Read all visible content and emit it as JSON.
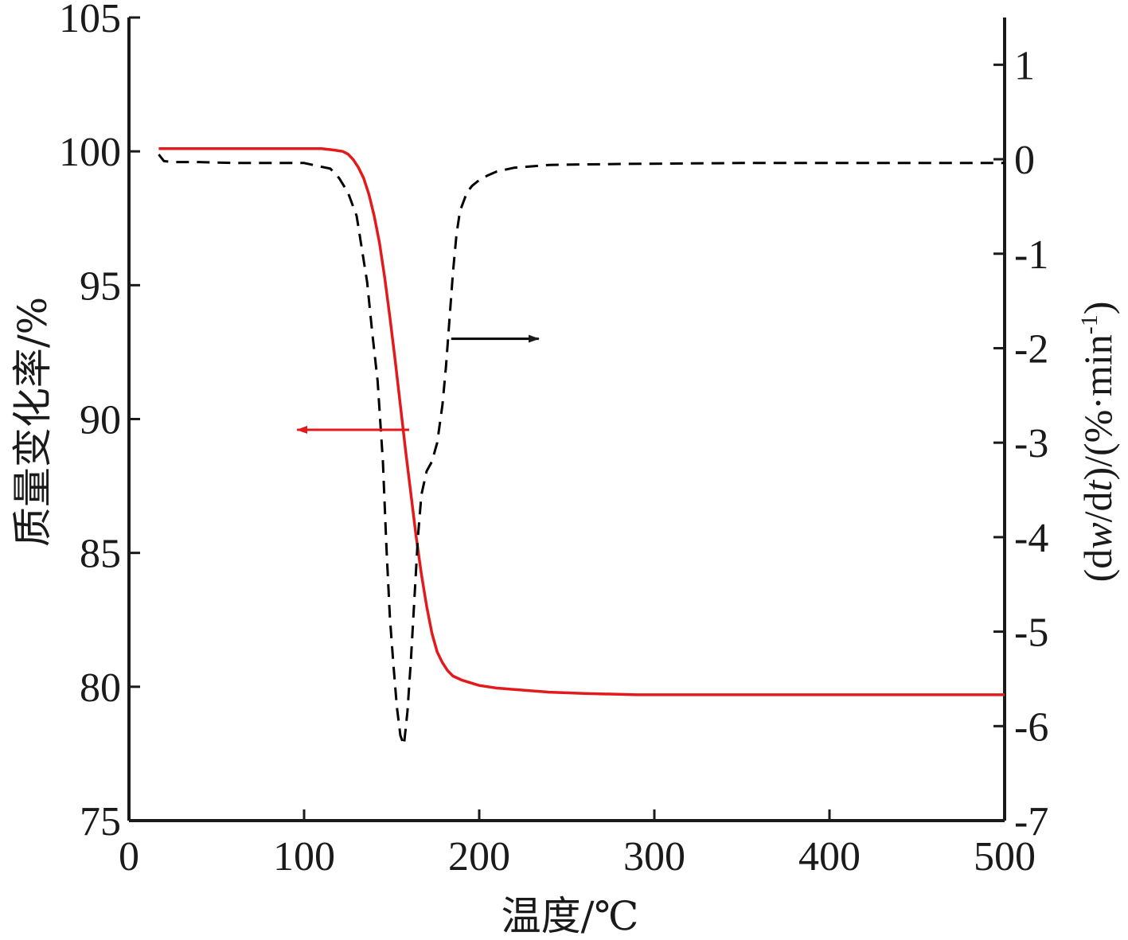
{
  "chart_data": {
    "type": "line",
    "xlabel": "温度/℃",
    "ylabel_left": "质量变化率/%",
    "ylabel_right": {
      "prefix": "(d",
      "w": "w",
      "mid": "/d",
      "t": "t",
      "suffix": ")/(%·min",
      "sup": "-1",
      "close": ")"
    },
    "xlim": [
      0,
      500
    ],
    "ylim_left": [
      75,
      105
    ],
    "ylim_right": [
      -7,
      1.5
    ],
    "x_ticks": [
      "0",
      "100",
      "200",
      "300",
      "400",
      "500"
    ],
    "y_left_ticks": [
      "75",
      "80",
      "85",
      "90",
      "95",
      "100",
      "105"
    ],
    "y_right_ticks": [
      "-7",
      "-6",
      "-5",
      "-4",
      "-3",
      "-2",
      "-1",
      "0",
      "1"
    ],
    "series": [
      {
        "axis": "left",
        "color": "#e31a1c",
        "style": "solid",
        "x": [
          17,
          60,
          110,
          117,
          122,
          125,
          128,
          131,
          134,
          137,
          140,
          143,
          146,
          149,
          152,
          155,
          158,
          161,
          164,
          167,
          170,
          173,
          176,
          179,
          182,
          185,
          190,
          195,
          200,
          210,
          220,
          240,
          260,
          290,
          350,
          400,
          450,
          500
        ],
        "y": [
          100.1,
          100.1,
          100.1,
          100.05,
          100.0,
          99.9,
          99.7,
          99.4,
          99.0,
          98.4,
          97.6,
          96.6,
          95.3,
          93.8,
          92.2,
          90.5,
          88.8,
          87.2,
          85.6,
          84.2,
          83.0,
          82.0,
          81.3,
          80.9,
          80.6,
          80.4,
          80.25,
          80.15,
          80.05,
          79.95,
          79.9,
          79.8,
          79.75,
          79.7,
          79.7,
          79.7,
          79.7,
          79.7
        ]
      },
      {
        "axis": "right",
        "color": "#000000",
        "style": "dashed",
        "x": [
          17,
          20,
          25,
          40,
          60,
          80,
          100,
          115,
          120,
          125,
          130,
          133,
          136,
          139,
          142,
          145,
          147,
          149,
          151,
          153,
          155,
          157,
          159,
          161,
          163,
          165,
          167,
          170,
          173,
          176,
          179,
          181,
          183,
          185,
          187,
          189,
          191,
          193,
          196,
          200,
          205,
          210,
          220,
          240,
          280,
          350,
          420,
          500
        ],
        "y": [
          0.05,
          -0.02,
          -0.03,
          -0.03,
          -0.04,
          -0.04,
          -0.04,
          -0.1,
          -0.2,
          -0.35,
          -0.6,
          -0.95,
          -1.3,
          -1.85,
          -2.35,
          -3.2,
          -4.1,
          -4.85,
          -5.35,
          -5.8,
          -6.1,
          -6.2,
          -5.85,
          -5.3,
          -4.65,
          -4.0,
          -3.55,
          -3.3,
          -3.2,
          -3.0,
          -2.6,
          -2.2,
          -1.7,
          -1.2,
          -0.8,
          -0.55,
          -0.45,
          -0.35,
          -0.28,
          -0.22,
          -0.17,
          -0.13,
          -0.09,
          -0.06,
          -0.05,
          -0.04,
          -0.04,
          -0.04
        ]
      }
    ],
    "annotations": [
      {
        "type": "arrow",
        "color": "#e31a1c",
        "axis": "left",
        "from_x": 160,
        "to_x": 96,
        "y": 89.6
      },
      {
        "type": "arrow",
        "color": "#000000",
        "axis": "right",
        "from_x": 184,
        "to_x": 234,
        "y": -1.9
      }
    ],
    "grid": false,
    "legend": "none"
  }
}
